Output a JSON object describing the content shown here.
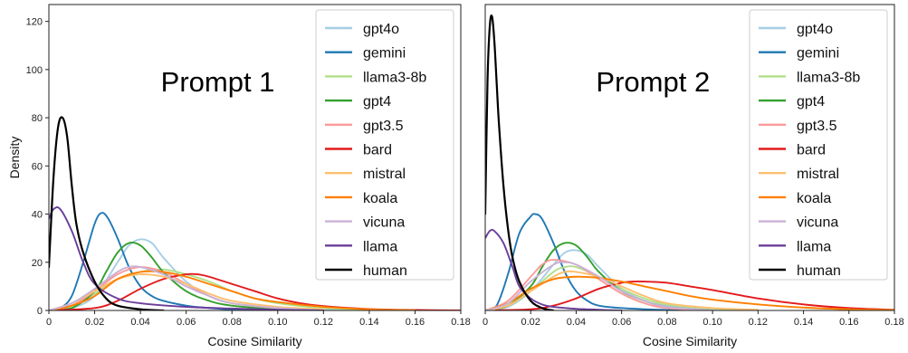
{
  "chart_data": [
    {
      "type": "line",
      "title": "Prompt 1",
      "xlabel": "Cosine Similarity",
      "ylabel": "Density",
      "xlim": [
        0,
        0.18
      ],
      "ylim": [
        0,
        127
      ],
      "xticks": [
        "0",
        "0.02",
        "0.04",
        "0.06",
        "0.08",
        "0.10",
        "0.12",
        "0.14",
        "0.16",
        "0.18"
      ],
      "yticks": [
        "0",
        "20",
        "40",
        "60",
        "80",
        "100",
        "120"
      ],
      "grid": false,
      "legend_position": "top-right",
      "series": [
        {
          "name": "gpt4o",
          "color": "#a6cee3",
          "x": [
            0,
            0.01,
            0.02,
            0.03,
            0.035,
            0.04,
            0.045,
            0.05,
            0.06,
            0.07,
            0.08,
            0.1,
            0.12,
            0.14
          ],
          "y": [
            0,
            1,
            6,
            20,
            27,
            29.5,
            28,
            22,
            12,
            6,
            3,
            1,
            0.3,
            0
          ]
        },
        {
          "name": "gemini",
          "color": "#1f78b4",
          "x": [
            0,
            0.005,
            0.01,
            0.015,
            0.02,
            0.023,
            0.026,
            0.03,
            0.035,
            0.04,
            0.045,
            0.05,
            0.06,
            0.07,
            0.08,
            0.1
          ],
          "y": [
            0,
            1,
            6,
            20,
            36,
            40.5,
            38,
            30,
            18,
            10,
            6,
            4,
            2,
            1,
            0.4,
            0
          ]
        },
        {
          "name": "llama3-8b",
          "color": "#b2df8a",
          "x": [
            0,
            0.01,
            0.02,
            0.03,
            0.04,
            0.05,
            0.06,
            0.07,
            0.08,
            0.09,
            0.1,
            0.12,
            0.14
          ],
          "y": [
            0,
            2,
            7,
            13,
            16,
            17,
            15,
            12,
            8,
            5,
            3,
            1,
            0.3
          ]
        },
        {
          "name": "gpt4",
          "color": "#33a02c",
          "x": [
            0,
            0.01,
            0.02,
            0.025,
            0.03,
            0.035,
            0.04,
            0.045,
            0.05,
            0.06,
            0.07,
            0.08,
            0.1,
            0.12
          ],
          "y": [
            0,
            1,
            8,
            16,
            24,
            28,
            27,
            22,
            16,
            8,
            4,
            2,
            0.5,
            0
          ]
        },
        {
          "name": "gpt3.5",
          "color": "#fb9a99",
          "x": [
            0,
            0.01,
            0.02,
            0.03,
            0.04,
            0.05,
            0.06,
            0.07,
            0.08,
            0.1,
            0.12
          ],
          "y": [
            0,
            2,
            8,
            15,
            18,
            16,
            11,
            6,
            3,
            1,
            0
          ]
        },
        {
          "name": "bard",
          "color": "#e31a1c",
          "x": [
            0,
            0.02,
            0.03,
            0.04,
            0.05,
            0.06,
            0.065,
            0.07,
            0.08,
            0.09,
            0.1,
            0.11,
            0.12,
            0.14,
            0.16,
            0.18
          ],
          "y": [
            0,
            1,
            4,
            9,
            13,
            15,
            15,
            14,
            11,
            8,
            5,
            3,
            1.8,
            0.6,
            0.2,
            0
          ]
        },
        {
          "name": "mistral",
          "color": "#fdbf6f",
          "x": [
            0,
            0.01,
            0.02,
            0.03,
            0.04,
            0.05,
            0.06,
            0.07,
            0.08,
            0.1,
            0.12
          ],
          "y": [
            0,
            3,
            8,
            13,
            15,
            14,
            11,
            7,
            4,
            1.5,
            0.5
          ]
        },
        {
          "name": "koala",
          "color": "#ff7f00",
          "x": [
            0,
            0.01,
            0.02,
            0.03,
            0.04,
            0.05,
            0.06,
            0.07,
            0.08,
            0.09,
            0.1,
            0.12,
            0.14,
            0.16
          ],
          "y": [
            0,
            2,
            6,
            13,
            16,
            16,
            14,
            11,
            8,
            5,
            3.5,
            1.5,
            0.5,
            0.1
          ]
        },
        {
          "name": "vicuna",
          "color": "#cab2d6",
          "x": [
            0,
            0.01,
            0.02,
            0.03,
            0.035,
            0.04,
            0.05,
            0.06,
            0.07,
            0.08,
            0.1,
            0.12
          ],
          "y": [
            0,
            3,
            9,
            16,
            18,
            18,
            15,
            10,
            6,
            3,
            1,
            0
          ]
        },
        {
          "name": "llama",
          "color": "#6a3d9a",
          "x": [
            0,
            0.002,
            0.005,
            0.01,
            0.015,
            0.02,
            0.03,
            0.04,
            0.06,
            0.08,
            0.1,
            0.12
          ],
          "y": [
            38,
            42,
            42,
            33,
            20,
            11,
            5,
            3,
            1.5,
            0.8,
            0.3,
            0
          ]
        },
        {
          "name": "human",
          "color": "#000000",
          "x": [
            0,
            0.002,
            0.004,
            0.006,
            0.008,
            0.01,
            0.012,
            0.015,
            0.02,
            0.025,
            0.03,
            0.04,
            0.05
          ],
          "y": [
            18,
            55,
            76,
            80,
            72,
            52,
            36,
            24,
            12,
            5,
            2,
            0.5,
            0
          ]
        }
      ]
    },
    {
      "type": "line",
      "title": "Prompt 2",
      "xlabel": "Cosine Similarity",
      "ylabel": "",
      "xlim": [
        0,
        0.18
      ],
      "ylim": [
        0,
        127
      ],
      "xticks": [
        "0",
        "0.02",
        "0.04",
        "0.06",
        "0.08",
        "0.10",
        "0.12",
        "0.14",
        "0.16",
        "0.18"
      ],
      "yticks": [],
      "grid": false,
      "legend_position": "top-right",
      "series": [
        {
          "name": "gpt4o",
          "color": "#a6cee3",
          "x": [
            0,
            0.01,
            0.02,
            0.03,
            0.035,
            0.04,
            0.045,
            0.05,
            0.06,
            0.07,
            0.08,
            0.1,
            0.12
          ],
          "y": [
            0,
            1.5,
            8,
            19,
            24,
            25,
            23,
            18,
            9,
            4,
            2,
            0.5,
            0
          ]
        },
        {
          "name": "gemini",
          "color": "#1f78b4",
          "x": [
            0,
            0.005,
            0.01,
            0.015,
            0.02,
            0.022,
            0.025,
            0.03,
            0.035,
            0.04,
            0.045,
            0.05,
            0.06,
            0.08,
            0.1
          ],
          "y": [
            0,
            2,
            15,
            32,
            39,
            40,
            38,
            28,
            16,
            8,
            4,
            2,
            1,
            0.2,
            0
          ]
        },
        {
          "name": "llama3-8b",
          "color": "#b2df8a",
          "x": [
            0,
            0.01,
            0.02,
            0.03,
            0.035,
            0.04,
            0.05,
            0.06,
            0.07,
            0.08,
            0.1,
            0.12
          ],
          "y": [
            0,
            2,
            8,
            16,
            18,
            18,
            14,
            9,
            5,
            2.5,
            0.8,
            0
          ]
        },
        {
          "name": "gpt4",
          "color": "#33a02c",
          "x": [
            0,
            0.01,
            0.02,
            0.025,
            0.03,
            0.035,
            0.04,
            0.045,
            0.05,
            0.06,
            0.07,
            0.08,
            0.1
          ],
          "y": [
            0,
            2,
            10,
            18,
            25,
            28,
            27,
            22,
            16,
            8,
            4,
            1.5,
            0
          ]
        },
        {
          "name": "gpt3.5",
          "color": "#fb9a99",
          "x": [
            0,
            0.01,
            0.02,
            0.025,
            0.03,
            0.04,
            0.05,
            0.06,
            0.07,
            0.08,
            0.1
          ],
          "y": [
            0,
            4,
            14,
            19,
            21,
            19,
            13,
            7,
            3,
            1,
            0
          ]
        },
        {
          "name": "bard",
          "color": "#e31a1c",
          "x": [
            0,
            0.02,
            0.03,
            0.04,
            0.05,
            0.06,
            0.065,
            0.07,
            0.08,
            0.09,
            0.1,
            0.12,
            0.14,
            0.16,
            0.18
          ],
          "y": [
            0,
            0.5,
            2,
            5,
            9,
            11.5,
            12,
            12,
            11.5,
            10,
            8.5,
            5,
            2.5,
            1,
            0.3
          ]
        },
        {
          "name": "mistral",
          "color": "#fdbf6f",
          "x": [
            0,
            0.01,
            0.02,
            0.03,
            0.035,
            0.04,
            0.05,
            0.06,
            0.07,
            0.08,
            0.1,
            0.12
          ],
          "y": [
            0,
            2,
            8,
            14,
            16,
            16,
            14,
            10,
            6,
            3,
            1,
            0.3
          ]
        },
        {
          "name": "koala",
          "color": "#ff7f00",
          "x": [
            0,
            0.01,
            0.02,
            0.03,
            0.04,
            0.05,
            0.06,
            0.07,
            0.08,
            0.09,
            0.1,
            0.12,
            0.14,
            0.16,
            0.18
          ],
          "y": [
            0,
            3,
            9,
            13,
            14,
            13.5,
            12,
            10,
            8,
            6,
            4.5,
            2.5,
            1.2,
            0.5,
            0.2
          ]
        },
        {
          "name": "vicuna",
          "color": "#cab2d6",
          "x": [
            0,
            0.01,
            0.02,
            0.03,
            0.035,
            0.04,
            0.05,
            0.06,
            0.07,
            0.08,
            0.1
          ],
          "y": [
            0,
            3,
            12,
            19,
            20,
            19,
            14,
            8,
            4,
            1.5,
            0
          ]
        },
        {
          "name": "llama",
          "color": "#6a3d9a",
          "x": [
            0,
            0.002,
            0.004,
            0.008,
            0.012,
            0.015,
            0.02,
            0.025,
            0.03,
            0.04,
            0.05,
            0.06
          ],
          "y": [
            30,
            33,
            33,
            28,
            18,
            10,
            5,
            2.5,
            1.5,
            0.7,
            0.3,
            0
          ]
        },
        {
          "name": "human",
          "color": "#000000",
          "x": [
            0,
            0.001,
            0.002,
            0.003,
            0.004,
            0.005,
            0.006,
            0.008,
            0.01,
            0.012,
            0.015,
            0.02,
            0.025,
            0.03
          ],
          "y": [
            40,
            95,
            118,
            122,
            112,
            95,
            78,
            52,
            34,
            22,
            12,
            4,
            1,
            0
          ]
        }
      ]
    }
  ]
}
